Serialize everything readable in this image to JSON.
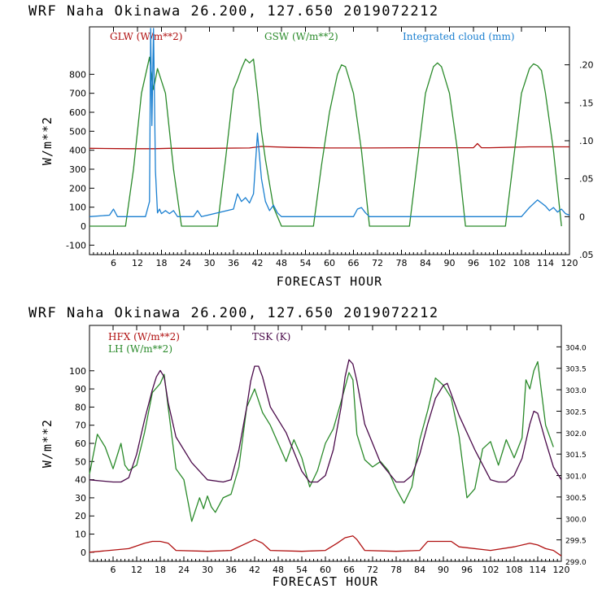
{
  "colors": {
    "red": "#b01010",
    "green": "#2a8a2a",
    "blue": "#1a7fd0",
    "purple": "#4a0a4a"
  },
  "chart_data": [
    {
      "type": "line",
      "title": "WRF   Naha Okinawa   26.200, 127.650   2019072212",
      "xlabel": "FORECAST HOUR",
      "ylabel": "W/m**2",
      "xlim": [
        0,
        120
      ],
      "xticks": [
        6,
        12,
        18,
        24,
        30,
        36,
        42,
        48,
        54,
        60,
        66,
        72,
        78,
        84,
        90,
        96,
        102,
        108,
        114,
        120
      ],
      "ylim": [
        -150,
        1050
      ],
      "yticks": [
        -100,
        0,
        100,
        200,
        300,
        400,
        500,
        600,
        700,
        800
      ],
      "y2lim": [
        -0.05,
        0.25
      ],
      "y2ticks": [
        -0.05,
        0,
        0.05,
        0.1,
        0.15,
        0.2
      ],
      "y2ticklabels": [
        ".05",
        "0",
        ".05",
        ".10",
        ".15",
        ".20"
      ],
      "series": [
        {
          "name": "GLW (W/m**2)",
          "color": "#b01010",
          "axis": "left",
          "x": [
            0,
            10,
            16,
            20,
            30,
            40,
            43,
            50,
            60,
            70,
            80,
            90,
            96,
            97,
            98,
            100,
            110,
            120
          ],
          "y": [
            410,
            408,
            408,
            410,
            410,
            412,
            420,
            415,
            412,
            412,
            413,
            413,
            413,
            435,
            413,
            413,
            418,
            418
          ]
        },
        {
          "name": "GSW (W/m**2)",
          "color": "#2a8a2a",
          "axis": "left",
          "x": [
            0,
            9,
            11,
            13,
            15,
            16,
            17,
            19,
            21,
            23,
            32,
            34,
            36,
            37,
            38,
            39,
            40,
            41,
            42,
            43,
            44,
            46,
            48,
            56,
            58,
            60,
            62,
            63,
            64,
            66,
            68,
            70,
            80,
            82,
            84,
            86,
            87,
            88,
            90,
            92,
            94,
            104,
            106,
            108,
            110,
            111,
            112,
            113,
            114,
            116,
            118
          ],
          "y": [
            0,
            0,
            300,
            700,
            890,
            720,
            830,
            700,
            300,
            0,
            0,
            350,
            720,
            770,
            830,
            880,
            860,
            880,
            700,
            500,
            350,
            100,
            0,
            0,
            320,
            600,
            800,
            850,
            840,
            700,
            400,
            0,
            0,
            350,
            700,
            840,
            860,
            840,
            700,
            400,
            0,
            0,
            350,
            700,
            830,
            855,
            845,
            820,
            700,
            400,
            0
          ]
        },
        {
          "name": "Integrated cloud (mm)",
          "color": "#1a7fd0",
          "axis": "right",
          "x": [
            0,
            5,
            6,
            7,
            14,
            15,
            15.3,
            15.6,
            16,
            16.5,
            17,
            17.5,
            18,
            19,
            20,
            21,
            22,
            26,
            27,
            28,
            36,
            37,
            38,
            39,
            40,
            41,
            42,
            43,
            44,
            45,
            46,
            47,
            48,
            66,
            67,
            68,
            69,
            70,
            108,
            110,
            112,
            113,
            114,
            115,
            116,
            117,
            118,
            119,
            120
          ],
          "y": [
            0,
            0.002,
            0.01,
            0.0,
            0.0,
            0.02,
            0.248,
            0.12,
            0.248,
            0.06,
            0.005,
            0.01,
            0.004,
            0.008,
            0.004,
            0.008,
            0.0,
            0.0,
            0.008,
            0.0,
            0.01,
            0.03,
            0.02,
            0.025,
            0.018,
            0.03,
            0.11,
            0.05,
            0.02,
            0.008,
            0.015,
            0.005,
            0.0,
            0.0,
            0.01,
            0.012,
            0.005,
            0.0,
            0.0,
            0.012,
            0.022,
            0.018,
            0.014,
            0.008,
            0.012,
            0.006,
            0.01,
            0.004,
            0.002
          ]
        }
      ]
    },
    {
      "type": "line",
      "title": "WRF   Naha Okinawa   26.200, 127.650   2019072212",
      "xlabel": "FORECAST HOUR",
      "ylabel": "W/m**2",
      "xlim": [
        0,
        120
      ],
      "xticks": [
        6,
        12,
        18,
        24,
        30,
        36,
        42,
        48,
        54,
        60,
        66,
        72,
        78,
        84,
        90,
        96,
        102,
        108,
        114,
        120
      ],
      "ylim": [
        -5,
        125
      ],
      "yticks": [
        0,
        10,
        20,
        30,
        40,
        50,
        60,
        70,
        80,
        90,
        100
      ],
      "y2lim": [
        299.0,
        304.5
      ],
      "y2ticks": [
        299.0,
        299.5,
        300.0,
        300.5,
        301.0,
        301.5,
        302.0,
        302.5,
        303.0,
        303.5,
        304.0
      ],
      "y2ticklabels": [
        "299.0",
        "299.5",
        "300.0",
        "300.5",
        "301.0",
        "301.5",
        "302.0",
        "302.5",
        "303.0",
        "303.5",
        "304.0"
      ],
      "series": [
        {
          "name": "HFX (W/m**2)",
          "color": "#b01010",
          "axis": "left",
          "x": [
            0,
            5,
            10,
            14,
            16,
            18,
            20,
            22,
            30,
            36,
            40,
            42,
            44,
            46,
            54,
            60,
            63,
            65,
            67,
            68,
            70,
            78,
            84,
            86,
            90,
            92,
            94,
            102,
            108,
            112,
            114,
            116,
            118,
            120
          ],
          "y": [
            0,
            1,
            2,
            5,
            6,
            6,
            5,
            1,
            0.5,
            1,
            5,
            7,
            5,
            1,
            0.5,
            1,
            5,
            8,
            9,
            7,
            1,
            0.5,
            1,
            6,
            6,
            6,
            3,
            1,
            3,
            5,
            4,
            2,
            1,
            -2
          ]
        },
        {
          "name": "LH  (W/m**2)",
          "color": "#2a8a2a",
          "axis": "left",
          "x": [
            0,
            2,
            4,
            6,
            8,
            9,
            10,
            12,
            14,
            16,
            18,
            19,
            20,
            22,
            24,
            26,
            28,
            29,
            30,
            31,
            32,
            34,
            36,
            38,
            40,
            42,
            44,
            46,
            48,
            50,
            52,
            54,
            56,
            58,
            60,
            62,
            64,
            66,
            67,
            68,
            70,
            72,
            74,
            76,
            78,
            80,
            82,
            84,
            86,
            88,
            90,
            92,
            94,
            96,
            98,
            100,
            102,
            104,
            106,
            108,
            110,
            111,
            112,
            113,
            114,
            116,
            118
          ],
          "y": [
            43,
            65,
            58,
            46,
            60,
            48,
            45,
            48,
            66,
            88,
            93,
            98,
            80,
            46,
            40,
            17,
            30,
            24,
            31,
            25,
            22,
            30,
            32,
            47,
            80,
            90,
            77,
            70,
            60,
            50,
            62,
            52,
            36,
            45,
            60,
            68,
            83,
            99,
            95,
            65,
            51,
            47,
            50,
            45,
            35,
            27,
            36,
            62,
            78,
            96,
            92,
            85,
            64,
            30,
            35,
            57,
            61,
            48,
            62,
            52,
            63,
            95,
            90,
            100,
            105,
            70,
            58
          ]
        },
        {
          "name": "TSK (K)",
          "color": "#4a0a4a",
          "axis": "right",
          "x": [
            0,
            6,
            8,
            10,
            12,
            14,
            16,
            17,
            18,
            19,
            20,
            22,
            26,
            30,
            34,
            36,
            38,
            40,
            41,
            42,
            43,
            44,
            46,
            50,
            54,
            56,
            58,
            60,
            62,
            64,
            65,
            66,
            67,
            68,
            70,
            74,
            78,
            80,
            82,
            84,
            86,
            88,
            90,
            91,
            92,
            94,
            98,
            102,
            104,
            106,
            108,
            110,
            112,
            113,
            114,
            116,
            118,
            120
          ],
          "y": [
            300.9,
            300.85,
            300.85,
            300.95,
            301.5,
            302.3,
            303.0,
            303.3,
            303.45,
            303.3,
            302.7,
            301.9,
            301.3,
            300.9,
            300.85,
            300.9,
            301.6,
            302.6,
            303.2,
            303.55,
            303.55,
            303.3,
            302.6,
            302.0,
            301.1,
            300.85,
            300.85,
            301.0,
            301.6,
            302.6,
            303.3,
            303.7,
            303.6,
            303.2,
            302.2,
            301.3,
            300.85,
            300.85,
            301.0,
            301.5,
            302.2,
            302.8,
            303.1,
            303.15,
            302.9,
            302.4,
            301.6,
            300.9,
            300.85,
            300.85,
            301.0,
            301.4,
            302.2,
            302.5,
            302.45,
            301.8,
            301.2,
            300.9
          ]
        }
      ]
    }
  ]
}
